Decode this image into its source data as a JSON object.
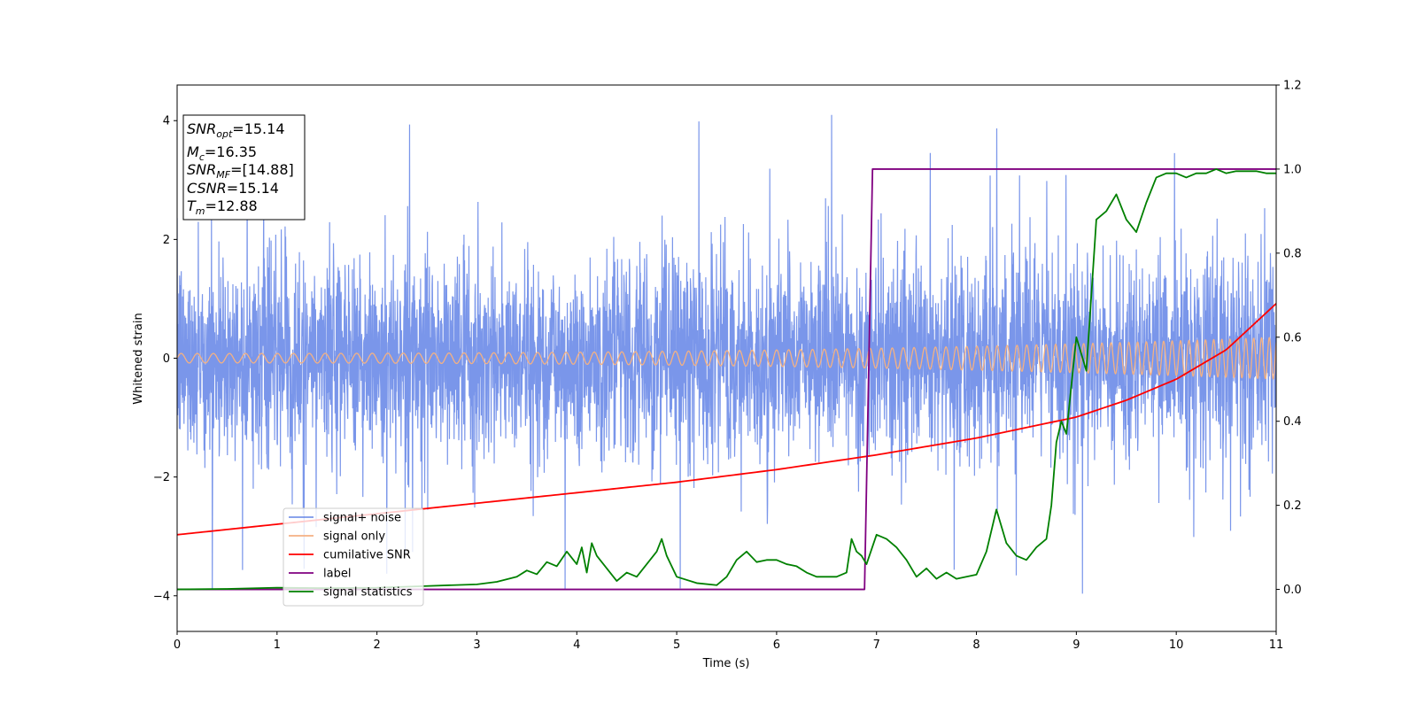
{
  "chart_data": {
    "type": "line",
    "xlabel": "Time (s)",
    "ylabel": "Whitened strain",
    "xlim": [
      0,
      11
    ],
    "ylim_left": [
      -4.6,
      4.6
    ],
    "ylim_right": [
      -0.1,
      1.2
    ],
    "xticks": [
      "0",
      "1",
      "2",
      "3",
      "4",
      "5",
      "6",
      "7",
      "8",
      "9",
      "10",
      "11"
    ],
    "yticks_left": [
      "−4",
      "−2",
      "0",
      "2",
      "4"
    ],
    "yticks_right": [
      "0.0",
      "0.2",
      "0.4",
      "0.6",
      "0.8",
      "1.0",
      "1.2"
    ],
    "grid": false,
    "legend_position": "lower-left",
    "info_box": {
      "snr_opt_label": "SNR",
      "snr_opt_sub": "opt",
      "snr_opt_value": "=15.14",
      "mc_label": "M",
      "mc_sub": "c",
      "mc_value": "=16.35",
      "snr_mf_label": "SNR",
      "snr_mf_sub": "MF",
      "snr_mf_value": "=[14.88]",
      "csnr_label": "CSNR",
      "csnr_value": "=15.14",
      "tm_label": "T",
      "tm_sub": "m",
      "tm_value": "=12.88"
    },
    "series": [
      {
        "name": "signal+ noise",
        "axis": "left",
        "color": "#4169e1",
        "description_type": "noise",
        "sigma": 1.0,
        "spike_max": 4.1
      },
      {
        "name": "signal only",
        "axis": "left",
        "color": "#f4b183",
        "description_type": "chirp",
        "amplitude_start": 0.08,
        "amplitude_end": 0.35,
        "freq_start_hz": 6.2,
        "freq_end_hz": 13.0
      },
      {
        "name": "cumilative SNR",
        "axis": "right",
        "color": "#ff0000",
        "x": [
          0,
          1,
          2,
          3,
          4,
          5,
          6,
          7,
          8,
          9,
          9.5,
          10,
          10.5,
          11
        ],
        "y": [
          0.13,
          0.155,
          0.18,
          0.205,
          0.23,
          0.255,
          0.285,
          0.32,
          0.36,
          0.41,
          0.45,
          0.5,
          0.57,
          0.68
        ]
      },
      {
        "name": "label",
        "axis": "right",
        "color": "#800080",
        "x": [
          0,
          6.88,
          6.96,
          11
        ],
        "y": [
          0.0,
          0.0,
          1.0,
          1.0
        ]
      },
      {
        "name": "signal statistics",
        "axis": "right",
        "color": "#008000",
        "x": [
          0,
          0.5,
          1.0,
          1.5,
          2.0,
          2.5,
          3.0,
          3.2,
          3.4,
          3.5,
          3.6,
          3.7,
          3.8,
          3.9,
          4.0,
          4.05,
          4.1,
          4.15,
          4.2,
          4.3,
          4.4,
          4.5,
          4.6,
          4.7,
          4.8,
          4.85,
          4.9,
          5.0,
          5.2,
          5.4,
          5.5,
          5.6,
          5.7,
          5.8,
          5.9,
          6.0,
          6.1,
          6.2,
          6.3,
          6.4,
          6.5,
          6.6,
          6.7,
          6.75,
          6.8,
          6.85,
          6.9,
          7.0,
          7.1,
          7.2,
          7.3,
          7.4,
          7.5,
          7.6,
          7.7,
          7.8,
          8.0,
          8.1,
          8.2,
          8.3,
          8.4,
          8.5,
          8.6,
          8.7,
          8.75,
          8.8,
          8.85,
          8.9,
          9.0,
          9.1,
          9.2,
          9.3,
          9.4,
          9.5,
          9.6,
          9.7,
          9.8,
          9.9,
          10.0,
          10.1,
          10.2,
          10.3,
          10.4,
          10.5,
          10.6,
          10.7,
          10.8,
          10.9,
          11.0
        ],
        "y": [
          0.0,
          0.001,
          0.004,
          0.003,
          0.004,
          0.008,
          0.012,
          0.018,
          0.03,
          0.045,
          0.036,
          0.065,
          0.055,
          0.09,
          0.06,
          0.1,
          0.04,
          0.11,
          0.08,
          0.05,
          0.02,
          0.04,
          0.03,
          0.06,
          0.09,
          0.12,
          0.08,
          0.03,
          0.015,
          0.01,
          0.03,
          0.07,
          0.09,
          0.065,
          0.07,
          0.07,
          0.06,
          0.055,
          0.04,
          0.03,
          0.03,
          0.03,
          0.04,
          0.12,
          0.09,
          0.08,
          0.06,
          0.13,
          0.12,
          0.1,
          0.07,
          0.03,
          0.05,
          0.025,
          0.04,
          0.025,
          0.035,
          0.09,
          0.19,
          0.11,
          0.08,
          0.07,
          0.1,
          0.12,
          0.2,
          0.35,
          0.4,
          0.37,
          0.6,
          0.52,
          0.88,
          0.9,
          0.94,
          0.88,
          0.85,
          0.92,
          0.98,
          0.99,
          0.99,
          0.98,
          0.99,
          0.99,
          1.0,
          0.99,
          0.995,
          0.995,
          0.995,
          0.99,
          0.99
        ]
      }
    ]
  }
}
